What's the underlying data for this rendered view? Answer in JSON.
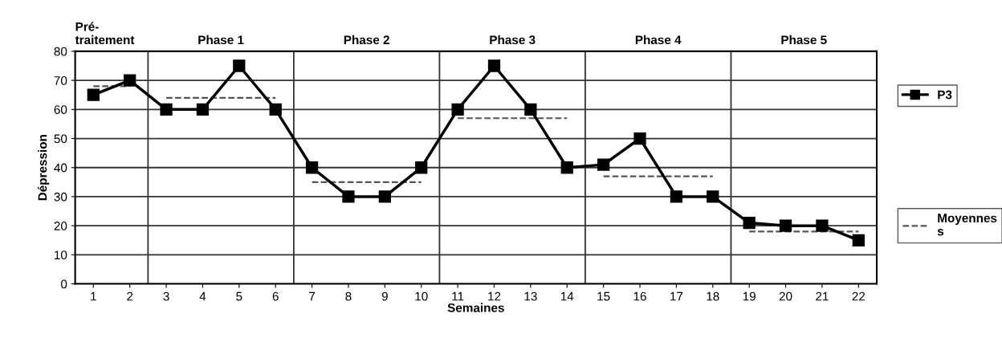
{
  "chart_data": {
    "type": "line",
    "xlabel": "Semaines",
    "ylabel": "Dépression",
    "x": [
      1,
      2,
      3,
      4,
      5,
      6,
      7,
      8,
      9,
      10,
      11,
      12,
      13,
      14,
      15,
      16,
      17,
      18,
      19,
      20,
      21,
      22
    ],
    "xlim": [
      0.5,
      22.5
    ],
    "xticks": [
      1,
      2,
      3,
      4,
      5,
      6,
      7,
      8,
      9,
      10,
      11,
      12,
      13,
      14,
      15,
      16,
      17,
      18,
      19,
      20,
      21,
      22
    ],
    "ylim": [
      0,
      80
    ],
    "yticks": [
      0,
      10,
      20,
      30,
      40,
      50,
      60,
      70,
      80
    ],
    "grid": "y",
    "legend": "right",
    "series": [
      {
        "name": "P3",
        "color": "#000000",
        "marker": "square",
        "line_style": "solid",
        "values": [
          65,
          70,
          60,
          60,
          75,
          60,
          40,
          30,
          30,
          40,
          60,
          75,
          60,
          40,
          41,
          50,
          30,
          30,
          21,
          20,
          20,
          15
        ]
      },
      {
        "name": "Moyennes\ns",
        "color": "#555555",
        "marker": "none",
        "line_style": "dashed",
        "x": [
          1,
          2
        ],
        "values": [
          68,
          68
        ]
      },
      {
        "color": "#555555",
        "marker": "none",
        "line_style": "dashed",
        "x": [
          3,
          6
        ],
        "values": [
          64,
          64
        ]
      },
      {
        "color": "#555555",
        "marker": "none",
        "line_style": "dashed",
        "x": [
          7,
          10
        ],
        "values": [
          35,
          35
        ]
      },
      {
        "color": "#555555",
        "marker": "none",
        "line_style": "dashed",
        "x": [
          11,
          14
        ],
        "values": [
          57,
          57
        ]
      },
      {
        "color": "#555555",
        "marker": "none",
        "line_style": "dashed",
        "x": [
          15,
          18
        ],
        "values": [
          37,
          37
        ]
      },
      {
        "color": "#555555",
        "marker": "none",
        "line_style": "dashed",
        "x": [
          19,
          22
        ],
        "values": [
          18,
          18
        ]
      }
    ],
    "ref_lines": [
      {
        "axis": "x",
        "value": 2.5,
        "color": "#333333"
      },
      {
        "axis": "x",
        "value": 6.5,
        "color": "#333333"
      },
      {
        "axis": "x",
        "value": 10.5,
        "color": "#333333"
      },
      {
        "axis": "x",
        "value": 14.5,
        "color": "#333333"
      },
      {
        "axis": "x",
        "value": 18.5,
        "color": "#333333"
      }
    ],
    "annotations": [
      "Pré-\ntraitement",
      "Phase 1",
      "Phase 2",
      "Phase 3",
      "Phase 4",
      "Phase 5"
    ]
  }
}
